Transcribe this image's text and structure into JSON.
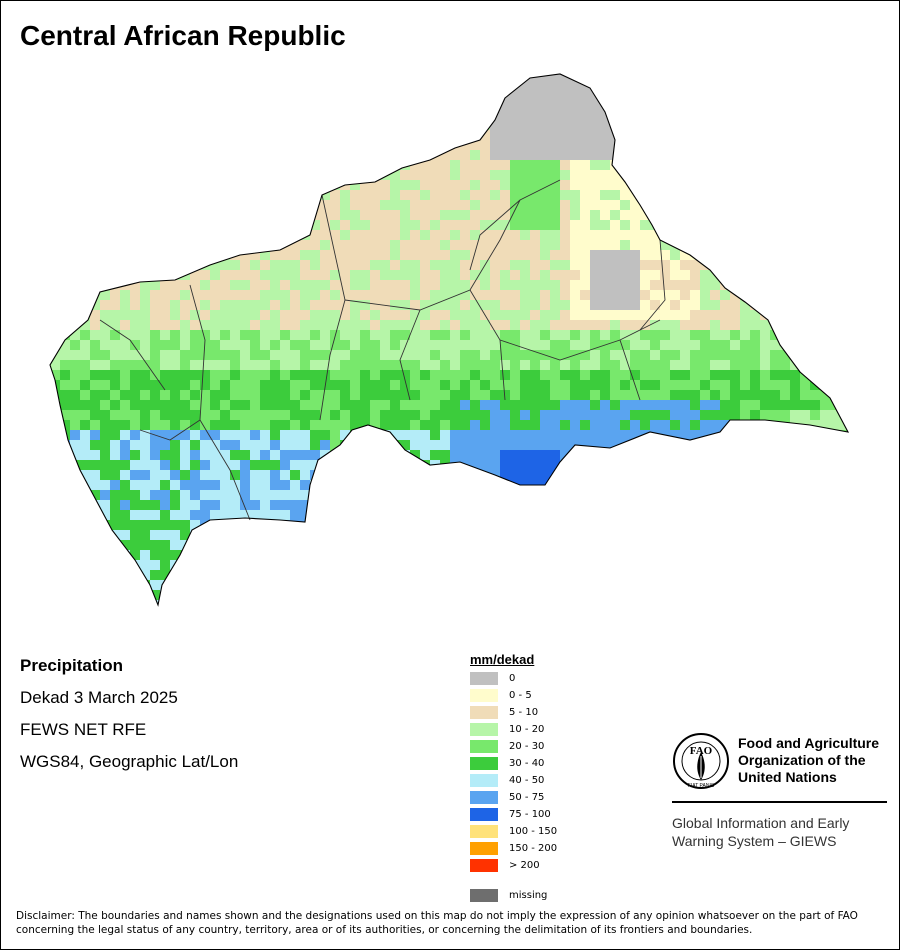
{
  "title": "Central African Republic",
  "info": {
    "heading": "Precipitation",
    "period": "Dekad 3 March 2025",
    "source": "FEWS NET RFE",
    "projection": "WGS84, Geographic Lat/Lon"
  },
  "legend": {
    "title": "mm/dekad",
    "classes": [
      {
        "label": "0",
        "color": "#c0c0c0"
      },
      {
        "label": "0 - 5",
        "color": "#fffccc"
      },
      {
        "label": "5 - 10",
        "color": "#f0dcb8"
      },
      {
        "label": "10 - 20",
        "color": "#b6f5a8"
      },
      {
        "label": "20 - 30",
        "color": "#78e86c"
      },
      {
        "label": "30 - 40",
        "color": "#3ccc3c"
      },
      {
        "label": "40 - 50",
        "color": "#b4ecf8"
      },
      {
        "label": "50 - 75",
        "color": "#5aa4f0"
      },
      {
        "label": "75 - 100",
        "color": "#1e64e6"
      },
      {
        "label": "100 - 150",
        "color": "#ffe27a"
      },
      {
        "label": "150 - 200",
        "color": "#ffa000"
      },
      {
        "label": "> 200",
        "color": "#ff3200"
      }
    ],
    "missing": {
      "label": "missing",
      "color": "#6e6e6e"
    }
  },
  "logo": {
    "org_name_lines": [
      "Food and Agriculture",
      "Organization of the",
      "United Nations"
    ],
    "emblem_letters": "FAO",
    "emblem_motto": "FIAT PANIS",
    "system_lines": [
      "Global Information and Early",
      "Warning System – GIEWS"
    ]
  },
  "disclaimer": "Disclaimer: The boundaries and names shown and the designations used on this map do not imply the expression of any opinion whatsoever on the part of FAO concerning the legal status of any country, territory, area or of its authorities, or concerning the delimitation of its frontiers and boundaries."
}
